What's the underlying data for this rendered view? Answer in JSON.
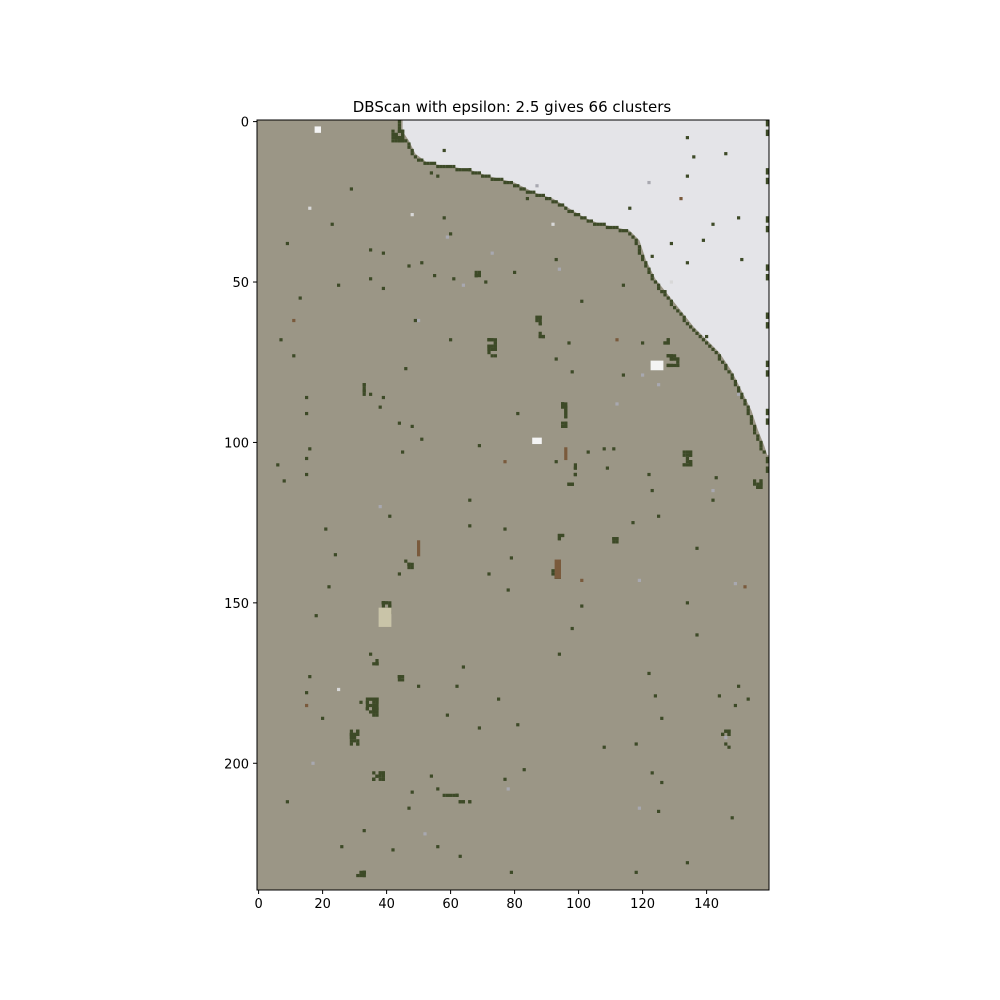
{
  "chart_data": {
    "type": "heatmap",
    "title": "DBScan with epsilon: 2.5 gives 66 clusters",
    "xlabel": "",
    "ylabel": "",
    "xlim": [
      -0.5,
      159.5
    ],
    "ylim": [
      239.5,
      -0.5
    ],
    "x_ticks": [
      0,
      20,
      40,
      60,
      80,
      100,
      120,
      140
    ],
    "y_ticks": [
      0,
      50,
      100,
      150,
      200
    ],
    "grid": false,
    "legend": "none",
    "colors": {
      "background_cluster": "#9b9686",
      "water_cluster": "#e4e4e8",
      "vegetation_cluster": "#3d4a27",
      "brown_cluster": "#7a5a3c",
      "pale_cluster": "#c9c4a8",
      "white_cluster": "#f4f4f4",
      "grey_cluster": "#a8a8b0",
      "light_cluster": "#d8d8d8"
    },
    "coastline": [
      [
        45,
        0
      ],
      [
        45,
        3
      ],
      [
        47,
        6
      ],
      [
        49,
        10
      ],
      [
        53,
        13
      ],
      [
        60,
        14
      ],
      [
        66,
        15
      ],
      [
        72,
        17
      ],
      [
        80,
        19
      ],
      [
        86,
        22
      ],
      [
        92,
        24
      ],
      [
        97,
        27
      ],
      [
        102,
        30
      ],
      [
        107,
        32
      ],
      [
        112,
        33
      ],
      [
        116,
        34
      ],
      [
        119,
        37
      ],
      [
        121,
        43
      ],
      [
        124,
        49
      ],
      [
        128,
        54
      ],
      [
        132,
        59
      ],
      [
        136,
        64
      ],
      [
        140,
        68
      ],
      [
        144,
        72
      ],
      [
        148,
        78
      ],
      [
        151,
        84
      ],
      [
        154,
        90
      ],
      [
        156,
        96
      ],
      [
        158,
        101
      ],
      [
        159,
        104
      ]
    ],
    "features": [
      {
        "type": "pale",
        "x": 38,
        "y": 152,
        "w": 4,
        "h": 6
      },
      {
        "type": "white",
        "x": 123,
        "y": 75,
        "w": 4,
        "h": 3
      },
      {
        "type": "white",
        "x": 86,
        "y": 99,
        "w": 3,
        "h": 2
      },
      {
        "type": "white",
        "x": 18,
        "y": 2,
        "w": 2,
        "h": 2
      },
      {
        "type": "brown",
        "x": 93,
        "y": 137,
        "w": 2,
        "h": 6
      },
      {
        "type": "brown",
        "x": 50,
        "y": 131,
        "w": 1,
        "h": 5
      },
      {
        "type": "brown",
        "x": 96,
        "y": 102,
        "w": 1,
        "h": 4
      }
    ]
  }
}
